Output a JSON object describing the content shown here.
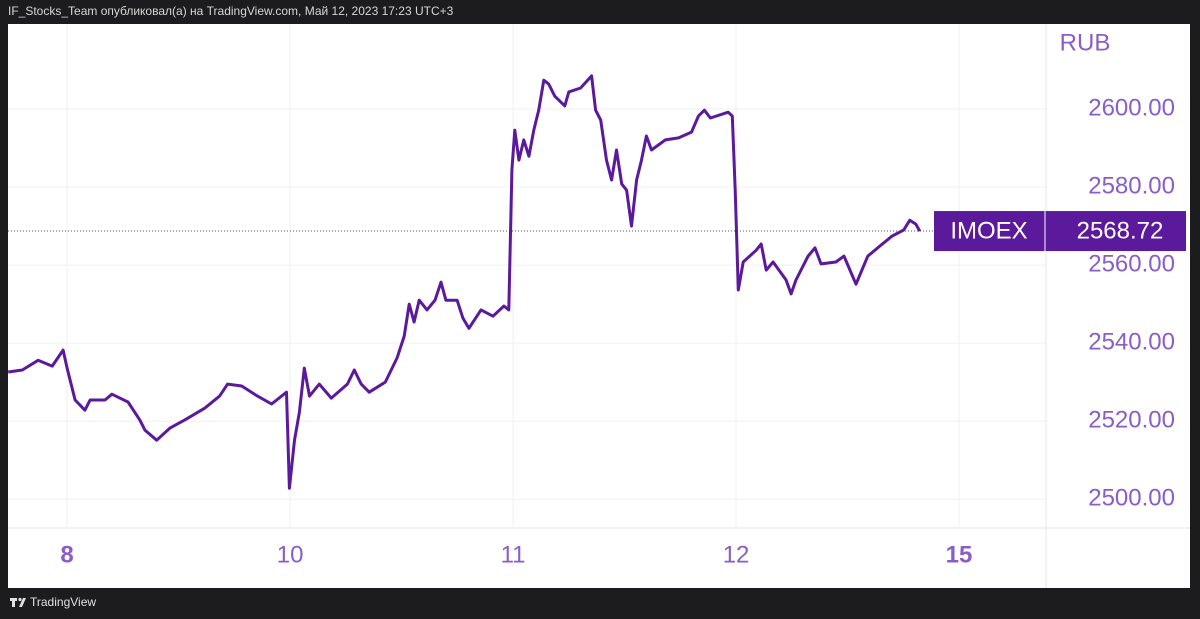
{
  "header": {
    "text": "IF_Stocks_Team опубликовал(а) на TradingView.com, Май 12, 2023 17:23 UTC+3"
  },
  "chart_data": {
    "type": "line",
    "currency": "RUB",
    "x": [
      -0.264,
      -0.201,
      -0.13,
      -0.067,
      -0.018,
      0,
      0.036,
      0.08,
      0.103,
      0.17,
      0.201,
      0.273,
      0.326,
      0.349,
      0.402,
      0.461,
      0.528,
      0.617,
      0.684,
      0.72,
      0.783,
      0.854,
      0.917,
      0.984,
      0.997,
      1.02,
      1.042,
      1.064,
      1.087,
      1.131,
      1.185,
      1.257,
      1.288,
      1.319,
      1.355,
      1.427,
      1.48,
      1.512,
      1.534,
      1.556,
      1.579,
      1.614,
      1.65,
      1.677,
      1.699,
      1.749,
      1.775,
      1.802,
      1.856,
      1.91,
      1.959,
      1.981,
      1.995,
      2.008,
      2.026,
      2.048,
      2.071,
      2.093,
      2.115,
      2.138,
      2.16,
      2.187,
      2.232,
      2.25,
      2.303,
      2.352,
      2.37,
      2.393,
      2.419,
      2.442,
      2.464,
      2.487,
      2.509,
      2.531,
      2.554,
      2.576,
      2.598,
      2.621,
      2.683,
      2.742,
      2.8,
      2.831,
      2.858,
      2.885,
      2.965,
      2.983,
      2.996,
      3.01,
      3.032,
      3.09,
      3.113,
      3.135,
      3.166,
      3.224,
      3.247,
      3.269,
      3.323,
      3.354,
      3.381,
      3.448,
      3.484,
      3.538,
      3.591,
      3.645,
      3.699,
      3.752,
      3.779,
      3.806,
      3.824
    ],
    "series": [
      {
        "name": "IMOEX",
        "color": "#5b1a9c",
        "last_value": 2568.72,
        "values": [
          2532.6,
          2533.1,
          2535.6,
          2534.1,
          2538.2,
          2533.6,
          2525.4,
          2522.8,
          2525.4,
          2525.4,
          2526.9,
          2524.9,
          2520.3,
          2517.7,
          2515.1,
          2518.2,
          2520.3,
          2523.3,
          2526.4,
          2529.5,
          2529.0,
          2526.4,
          2524.4,
          2527.4,
          2502.8,
          2515.1,
          2522.3,
          2533.6,
          2526.4,
          2529.5,
          2525.9,
          2529.5,
          2533.1,
          2529.5,
          2527.4,
          2530.0,
          2536.2,
          2541.8,
          2550.0,
          2545.4,
          2551.0,
          2548.5,
          2551.0,
          2555.6,
          2551.0,
          2551.0,
          2546.4,
          2543.8,
          2548.5,
          2546.9,
          2549.5,
          2548.5,
          2584.4,
          2594.6,
          2586.9,
          2592.1,
          2587.9,
          2594.6,
          2599.7,
          2607.4,
          2606.4,
          2603.3,
          2600.8,
          2604.4,
          2605.4,
          2608.5,
          2599.7,
          2597.2,
          2586.9,
          2581.8,
          2589.5,
          2580.8,
          2579.2,
          2570.0,
          2581.8,
          2586.9,
          2593.1,
          2589.5,
          2592.1,
          2592.6,
          2594.1,
          2598.2,
          2599.7,
          2597.7,
          2599.2,
          2598.2,
          2579.2,
          2553.6,
          2560.8,
          2563.8,
          2565.4,
          2558.7,
          2560.8,
          2556.2,
          2552.6,
          2556.2,
          2562.3,
          2564.4,
          2560.3,
          2560.8,
          2562.3,
          2555.1,
          2562.3,
          2564.9,
          2567.4,
          2569.0,
          2571.5,
          2570.5,
          2568.7
        ]
      }
    ],
    "xlim": [
      -0.265,
      4.39
    ],
    "xticks": [
      {
        "value": 0,
        "label": "8",
        "bold": true
      },
      {
        "value": 1,
        "label": "10"
      },
      {
        "value": 2,
        "label": "11"
      },
      {
        "value": 3,
        "label": "12"
      },
      {
        "value": 4,
        "label": "15",
        "bold": true
      }
    ],
    "ylim": [
      2492.6,
      2621.8
    ],
    "yticks": [
      {
        "value": 2500,
        "label": "2500.00"
      },
      {
        "value": 2520,
        "label": "2520.00"
      },
      {
        "value": 2540,
        "label": "2540.00"
      },
      {
        "value": 2560,
        "label": "2560.00"
      },
      {
        "value": 2580,
        "label": "2580.00"
      },
      {
        "value": 2600,
        "label": "2600.00"
      }
    ],
    "grid": true
  },
  "footer": {
    "brand": "TradingView"
  }
}
